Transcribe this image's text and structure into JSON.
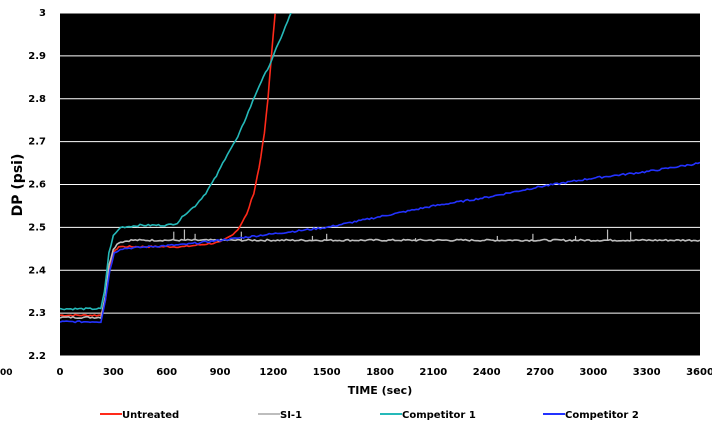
{
  "chart_data": {
    "type": "line",
    "title": "",
    "xlabel": "TIME (sec)",
    "ylabel": "DP (psi)",
    "xlim": [
      0,
      3600
    ],
    "ylim": [
      2.2,
      3.0
    ],
    "x_ticks": [
      "0",
      "300",
      "600",
      "900",
      "1200",
      "1500",
      "1800",
      "2100",
      "2400",
      "2700",
      "3000",
      "3300",
      "3600"
    ],
    "y_ticks": [
      "2.2",
      "2.3",
      "2.4",
      "2.5",
      "2.6",
      "2.7",
      "2.8",
      "2.9",
      "3"
    ],
    "grid": true,
    "background": "#000000",
    "gridline_color": "#ffffff",
    "legend_position": "bottom",
    "series": [
      {
        "name": "Untreated",
        "color": "#ff2a1a",
        "points": [
          [
            0,
            2.295
          ],
          [
            230,
            2.295
          ],
          [
            255,
            2.33
          ],
          [
            275,
            2.4
          ],
          [
            300,
            2.44
          ],
          [
            330,
            2.455
          ],
          [
            500,
            2.455
          ],
          [
            700,
            2.455
          ],
          [
            800,
            2.46
          ],
          [
            900,
            2.465
          ],
          [
            960,
            2.48
          ],
          [
            1000,
            2.495
          ],
          [
            1050,
            2.53
          ],
          [
            1090,
            2.58
          ],
          [
            1120,
            2.64
          ],
          [
            1150,
            2.72
          ],
          [
            1170,
            2.8
          ],
          [
            1185,
            2.88
          ],
          [
            1200,
            2.95
          ],
          [
            1210,
            3.0
          ]
        ]
      },
      {
        "name": "SI-1",
        "color": "#bdbdbd",
        "points": [
          [
            0,
            2.29
          ],
          [
            230,
            2.29
          ],
          [
            255,
            2.34
          ],
          [
            275,
            2.41
          ],
          [
            300,
            2.45
          ],
          [
            330,
            2.465
          ],
          [
            400,
            2.47
          ],
          [
            600,
            2.47
          ],
          [
            800,
            2.47
          ],
          [
            1000,
            2.47
          ],
          [
            1200,
            2.47
          ],
          [
            1500,
            2.47
          ],
          [
            1800,
            2.47
          ],
          [
            2100,
            2.47
          ],
          [
            2400,
            2.47
          ],
          [
            2700,
            2.47
          ],
          [
            3000,
            2.47
          ],
          [
            3300,
            2.47
          ],
          [
            3600,
            2.47
          ]
        ],
        "spikes": [
          [
            640,
            2.49
          ],
          [
            700,
            2.495
          ],
          [
            760,
            2.485
          ],
          [
            1020,
            2.49
          ],
          [
            1420,
            2.48
          ],
          [
            1500,
            2.485
          ],
          [
            2000,
            2.475
          ],
          [
            2460,
            2.48
          ],
          [
            2660,
            2.485
          ],
          [
            2900,
            2.48
          ],
          [
            3080,
            2.495
          ],
          [
            3210,
            2.49
          ]
        ]
      },
      {
        "name": "Competitor 1",
        "color": "#25b9b9",
        "points": [
          [
            0,
            2.31
          ],
          [
            230,
            2.31
          ],
          [
            250,
            2.35
          ],
          [
            275,
            2.44
          ],
          [
            300,
            2.48
          ],
          [
            340,
            2.5
          ],
          [
            450,
            2.505
          ],
          [
            600,
            2.505
          ],
          [
            660,
            2.51
          ],
          [
            700,
            2.53
          ],
          [
            760,
            2.55
          ],
          [
            820,
            2.58
          ],
          [
            880,
            2.62
          ],
          [
            940,
            2.67
          ],
          [
            1000,
            2.71
          ],
          [
            1060,
            2.77
          ],
          [
            1120,
            2.83
          ],
          [
            1180,
            2.88
          ],
          [
            1230,
            2.93
          ],
          [
            1280,
            2.98
          ],
          [
            1300,
            3.0
          ]
        ]
      },
      {
        "name": "Competitor 2",
        "color": "#2332ff",
        "points": [
          [
            0,
            2.28
          ],
          [
            230,
            2.28
          ],
          [
            255,
            2.33
          ],
          [
            280,
            2.4
          ],
          [
            305,
            2.44
          ],
          [
            340,
            2.45
          ],
          [
            500,
            2.455
          ],
          [
            700,
            2.46
          ],
          [
            900,
            2.47
          ],
          [
            1200,
            2.485
          ],
          [
            1500,
            2.5
          ],
          [
            1800,
            2.525
          ],
          [
            2100,
            2.55
          ],
          [
            2400,
            2.57
          ],
          [
            2700,
            2.595
          ],
          [
            3000,
            2.615
          ],
          [
            3300,
            2.63
          ],
          [
            3600,
            2.65
          ]
        ]
      }
    ]
  },
  "stray_label": "00"
}
